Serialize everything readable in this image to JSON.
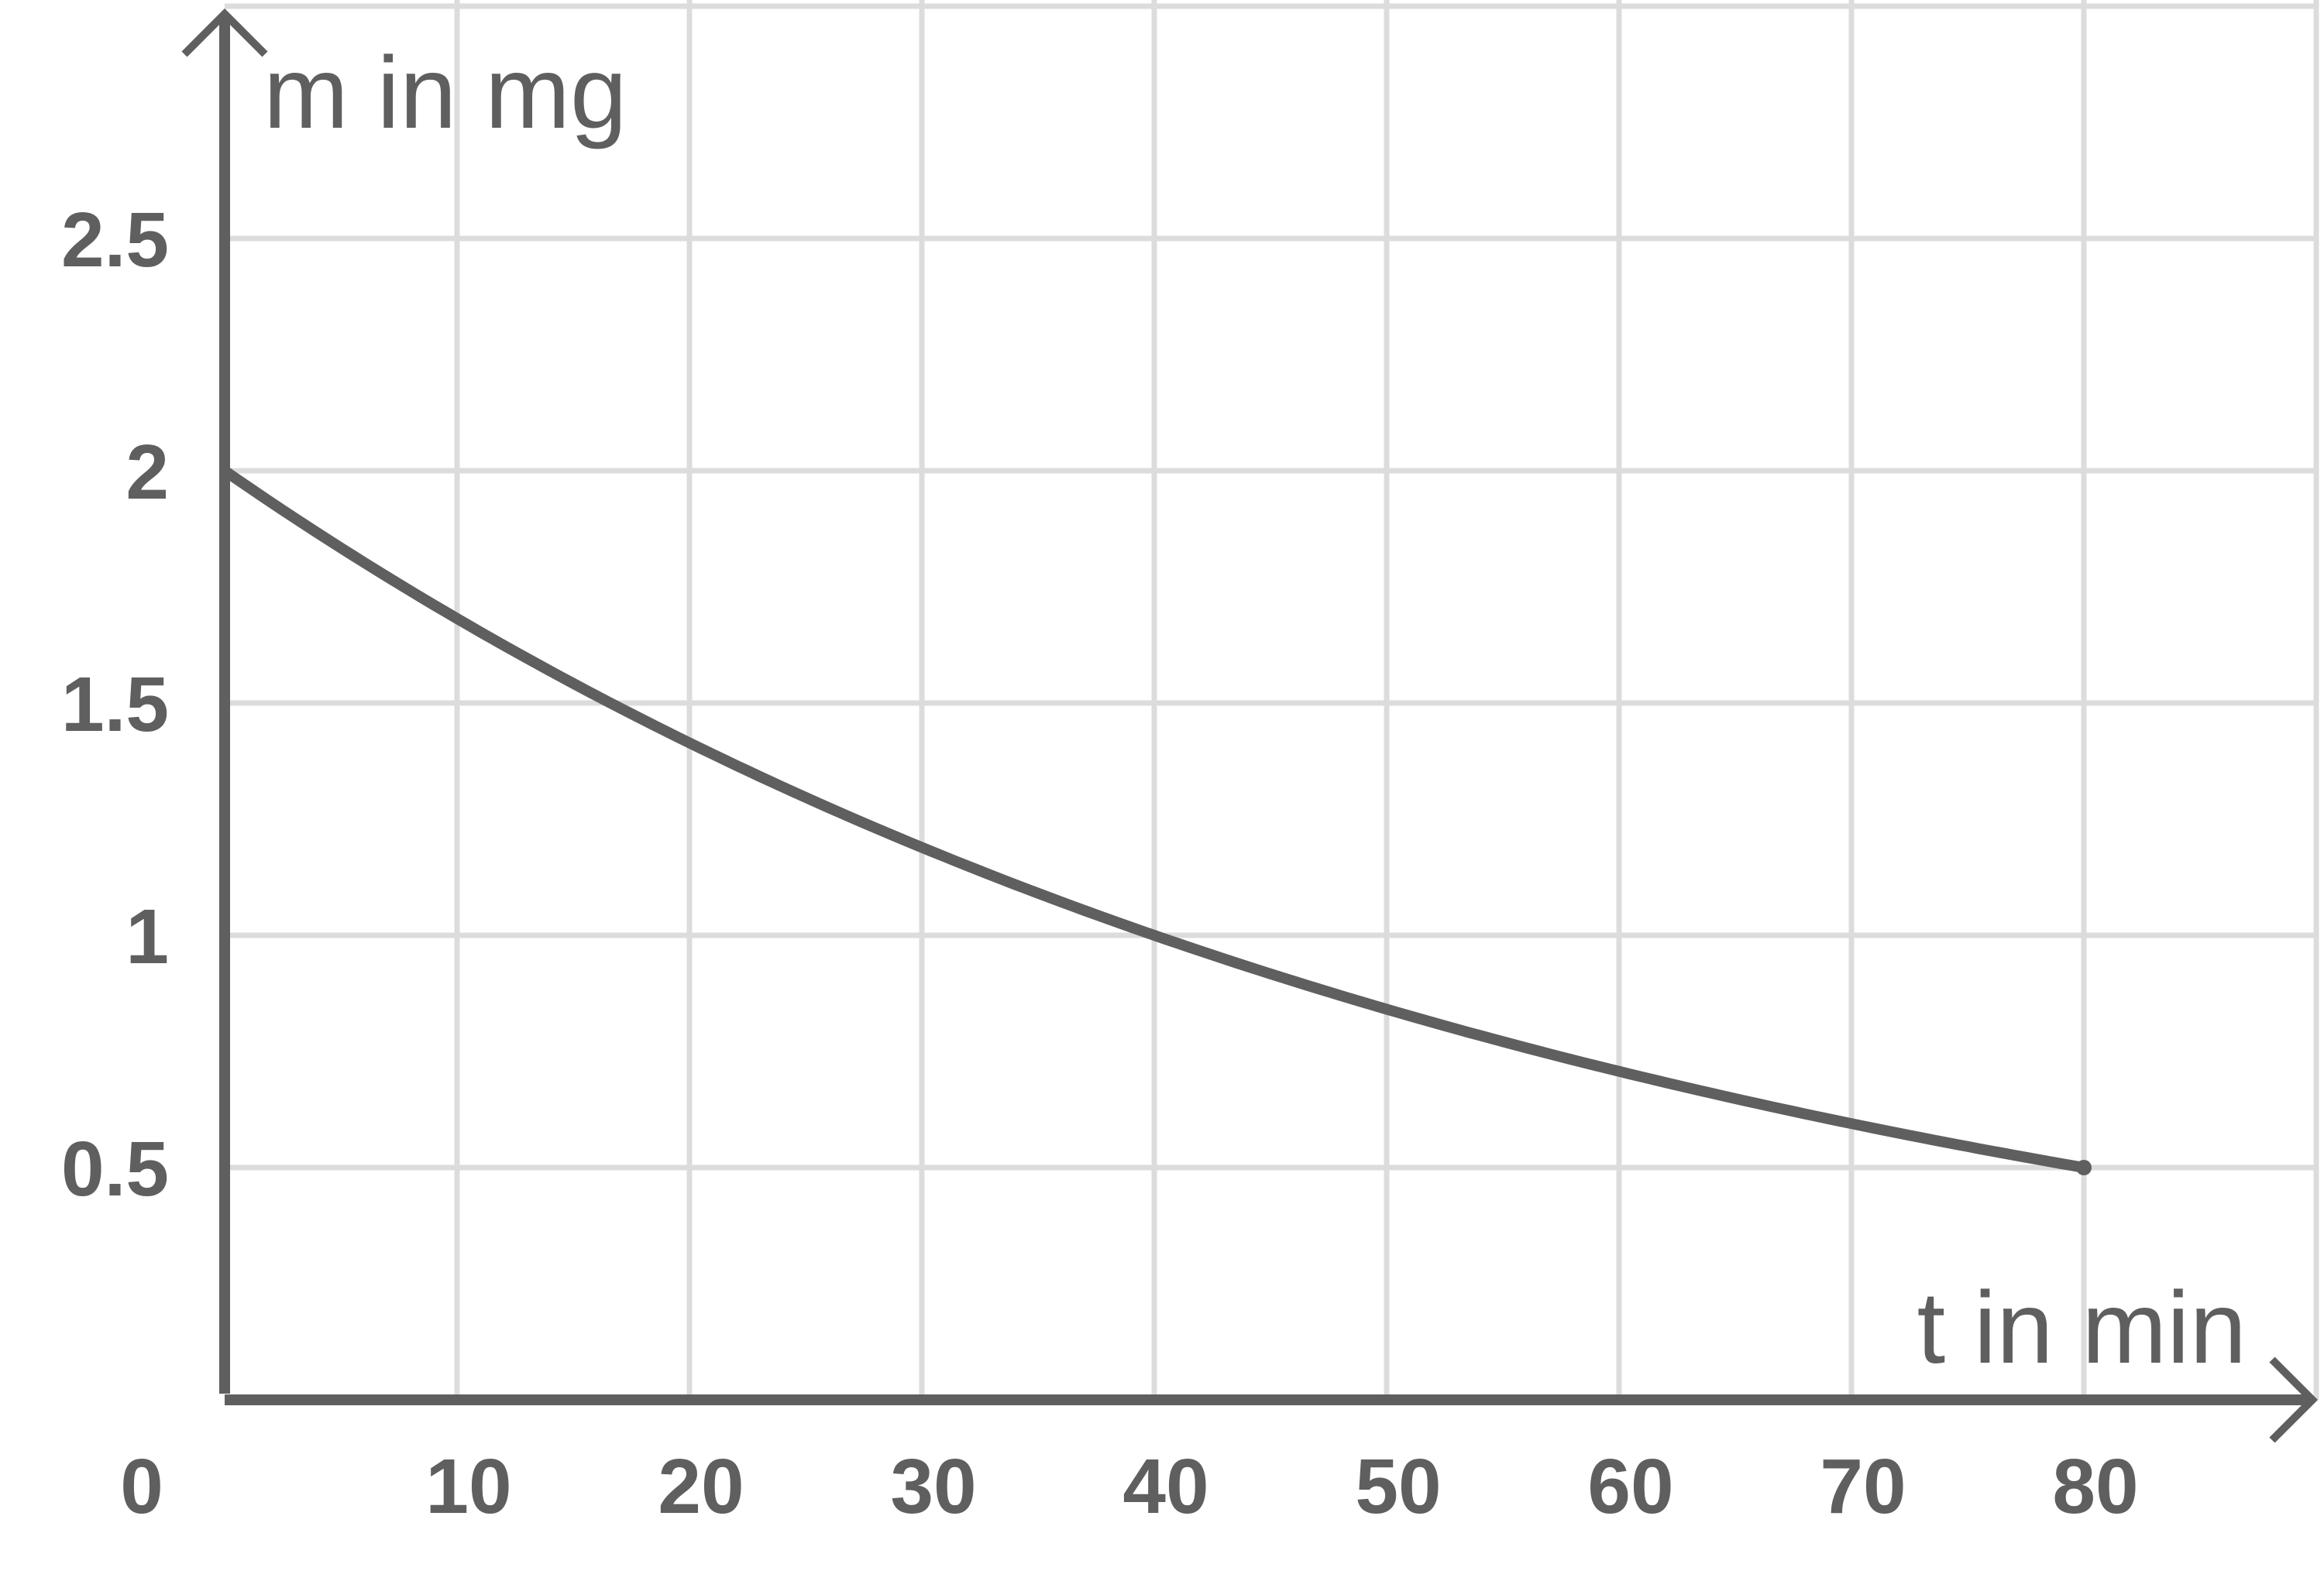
{
  "chart_data": {
    "type": "line",
    "xlabel": "t in min",
    "ylabel": "m in mg",
    "xlim": [
      0,
      90
    ],
    "ylim": [
      0,
      3
    ],
    "x_ticks": [
      10,
      20,
      30,
      40,
      50,
      60,
      70,
      80
    ],
    "y_ticks": [
      0.5,
      1,
      1.5,
      2,
      2.5
    ],
    "x_tick_labels": [
      "10",
      "20",
      "30",
      "40",
      "50",
      "60",
      "70",
      "80"
    ],
    "y_tick_labels": [
      "0.5",
      "1",
      "1.5",
      "2",
      "2.5"
    ],
    "origin_label": "0",
    "grid": true,
    "series": [
      {
        "x": [
          0,
          10,
          20,
          30,
          40,
          50,
          60,
          70,
          80
        ],
        "y": [
          2.0,
          1.68,
          1.41,
          1.19,
          1.0,
          0.84,
          0.71,
          0.59,
          0.5
        ]
      }
    ]
  }
}
